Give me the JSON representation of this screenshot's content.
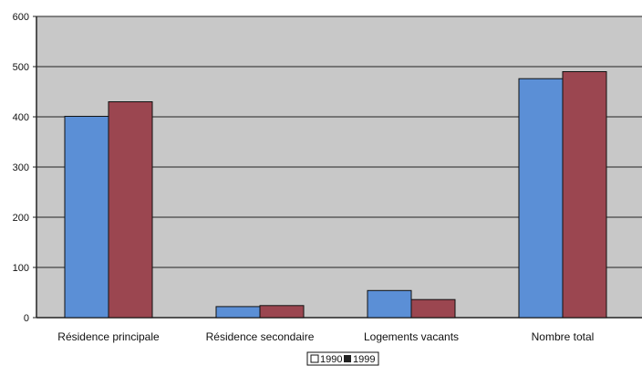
{
  "chart_data": {
    "type": "bar",
    "title": "",
    "xlabel": "",
    "ylabel": "",
    "categories": [
      "Résidence principale",
      "Résidence secondaire",
      "Logements vacants",
      "Nombre total"
    ],
    "series": [
      {
        "name": "1990",
        "values": [
          401,
          22,
          54,
          476
        ],
        "color": "#5b8fd6"
      },
      {
        "name": "1999",
        "values": [
          430,
          24,
          36,
          490
        ],
        "color": "#9b4650"
      }
    ],
    "ylim": [
      0,
      600
    ],
    "yticks": [
      0,
      100,
      200,
      300,
      400,
      500,
      600
    ],
    "grid": true,
    "legend_position": "bottom-center",
    "plot_background": "#c8c8c8"
  }
}
